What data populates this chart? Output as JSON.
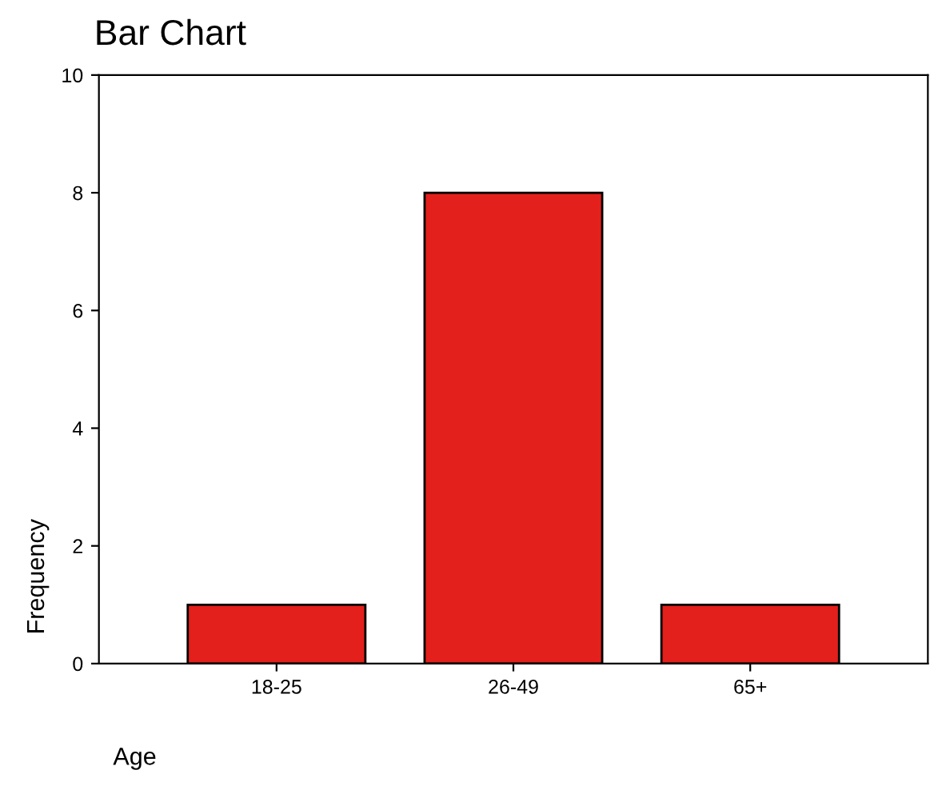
{
  "chart_data": {
    "type": "bar",
    "title": "Bar Chart",
    "xlabel": "Age",
    "ylabel": "Frequency",
    "categories": [
      "18-25",
      "26-49",
      "65+"
    ],
    "values": [
      1,
      8,
      1
    ],
    "color": "#e3201b",
    "ylim": [
      0,
      10
    ],
    "yticks": [
      0,
      2,
      4,
      6,
      8,
      10
    ],
    "grid": false,
    "legend": false
  }
}
